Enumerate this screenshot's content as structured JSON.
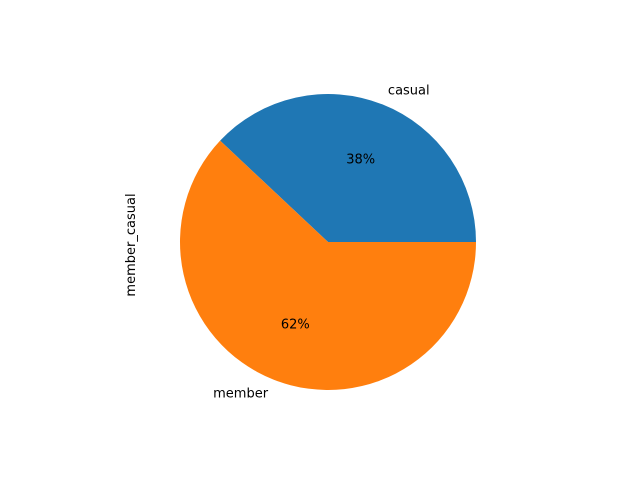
{
  "chart_data": {
    "type": "pie",
    "ylabel": "member_casual",
    "slices": [
      {
        "label": "casual",
        "value": 38,
        "pct_label": "38%",
        "color": "#1f77b4"
      },
      {
        "label": "member",
        "value": 62,
        "pct_label": "62%",
        "color": "#ff7f0e"
      }
    ],
    "start_angle_deg": 0,
    "counterclockwise": true
  }
}
